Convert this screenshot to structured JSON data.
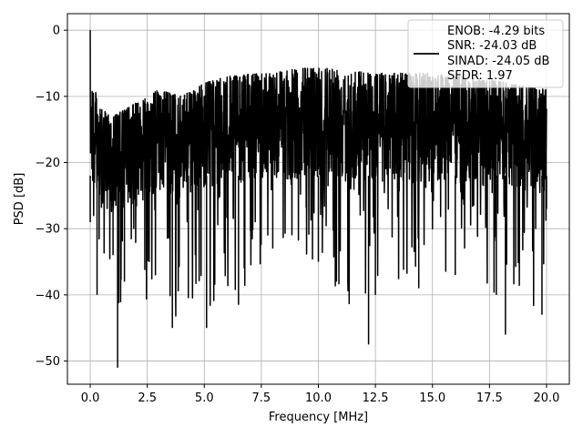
{
  "chart_data": {
    "type": "line",
    "xlabel": "Frequency [MHz]",
    "ylabel": "PSD [dB]",
    "xlim": [
      -1.0,
      21.0
    ],
    "ylim": [
      -53.5,
      2.5
    ],
    "xticks": [
      0.0,
      2.5,
      5.0,
      7.5,
      10.0,
      12.5,
      15.0,
      17.5,
      20.0
    ],
    "xtick_labels": [
      "0.0",
      "2.5",
      "5.0",
      "7.5",
      "10.0",
      "12.5",
      "15.0",
      "17.5",
      "20.0"
    ],
    "yticks": [
      0,
      -10,
      -20,
      -30,
      -40,
      -50
    ],
    "ytick_labels": [
      "0",
      "−10",
      "−20",
      "−30",
      "−40",
      "−50"
    ],
    "grid": true,
    "legend": {
      "placement": "upper right",
      "label_lines": [
        "ENOB: -4.29 bits",
        "SNR: -24.03 dB",
        "SINAD: -24.05 dB",
        "SFDR: 1.97"
      ]
    },
    "series": [
      {
        "color": "#000000",
        "x_start": 0.0,
        "x_end": 20.0,
        "envelope_top": [
          [
            0.0,
            0.0
          ],
          [
            0.1,
            -8
          ],
          [
            0.5,
            -12
          ],
          [
            1.0,
            -13
          ],
          [
            2.0,
            -11
          ],
          [
            3.0,
            -9
          ],
          [
            4.0,
            -10
          ],
          [
            5.0,
            -8
          ],
          [
            6.0,
            -7
          ],
          [
            7.5,
            -6.5
          ],
          [
            10.0,
            -5.5
          ],
          [
            12.5,
            -6.5
          ],
          [
            15.0,
            -6.5
          ],
          [
            17.5,
            -7.5
          ],
          [
            20.0,
            -9
          ]
        ],
        "envelope_bottom": [
          [
            0.0,
            -29
          ],
          [
            0.3,
            -40
          ],
          [
            1.0,
            -34
          ],
          [
            1.2,
            -51
          ],
          [
            1.5,
            -38
          ],
          [
            3.6,
            -45
          ],
          [
            4.3,
            -40.5
          ],
          [
            5.1,
            -45
          ],
          [
            6.5,
            -41.5
          ],
          [
            8.0,
            -33
          ],
          [
            10.0,
            -35
          ],
          [
            12.2,
            -47.5
          ],
          [
            12.5,
            -40
          ],
          [
            14.4,
            -39
          ],
          [
            16.0,
            -37
          ],
          [
            17.8,
            -40
          ],
          [
            18.2,
            -46
          ],
          [
            19.8,
            -43
          ],
          [
            20.0,
            -27
          ]
        ]
      }
    ]
  }
}
